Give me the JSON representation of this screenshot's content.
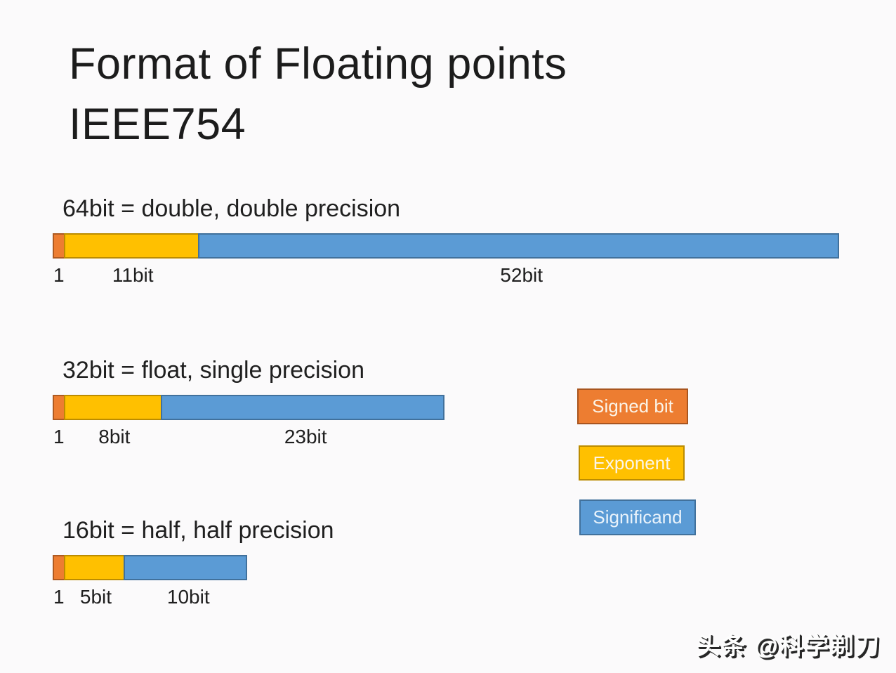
{
  "title": {
    "line1": "Format of Floating points",
    "line2": "IEEE754"
  },
  "formats": [
    {
      "name": "64bit",
      "heading": "64bit = double, double precision",
      "total_bits": 64,
      "segments": [
        {
          "name": "signed-bit",
          "bits": 1,
          "label": "1"
        },
        {
          "name": "exponent",
          "bits": 11,
          "label": "11bit"
        },
        {
          "name": "significand",
          "bits": 52,
          "label": "52bit"
        }
      ]
    },
    {
      "name": "32bit",
      "heading": "32bit = float, single precision",
      "total_bits": 32,
      "segments": [
        {
          "name": "signed-bit",
          "bits": 1,
          "label": "1"
        },
        {
          "name": "exponent",
          "bits": 8,
          "label": "8bit"
        },
        {
          "name": "significand",
          "bits": 23,
          "label": "23bit"
        }
      ]
    },
    {
      "name": "16bit",
      "heading": "16bit = half, half precision",
      "total_bits": 16,
      "segments": [
        {
          "name": "signed-bit",
          "bits": 1,
          "label": "1"
        },
        {
          "name": "exponent",
          "bits": 5,
          "label": "5bit"
        },
        {
          "name": "significand",
          "bits": 10,
          "label": "10bit"
        }
      ]
    }
  ],
  "legend": [
    {
      "name": "signed-bit",
      "label": "Signed bit",
      "fill": "#ED7D31",
      "border": "#A8551F"
    },
    {
      "name": "exponent",
      "label": "Exponent",
      "fill": "#FFC000",
      "border": "#BC8C00"
    },
    {
      "name": "significand",
      "label": "Significand",
      "fill": "#5B9BD5",
      "border": "#41719C"
    }
  ],
  "watermark": "头条 @科学剃刀",
  "colors": {
    "background": "#FBFAFB",
    "text": "#1f1f1f"
  }
}
